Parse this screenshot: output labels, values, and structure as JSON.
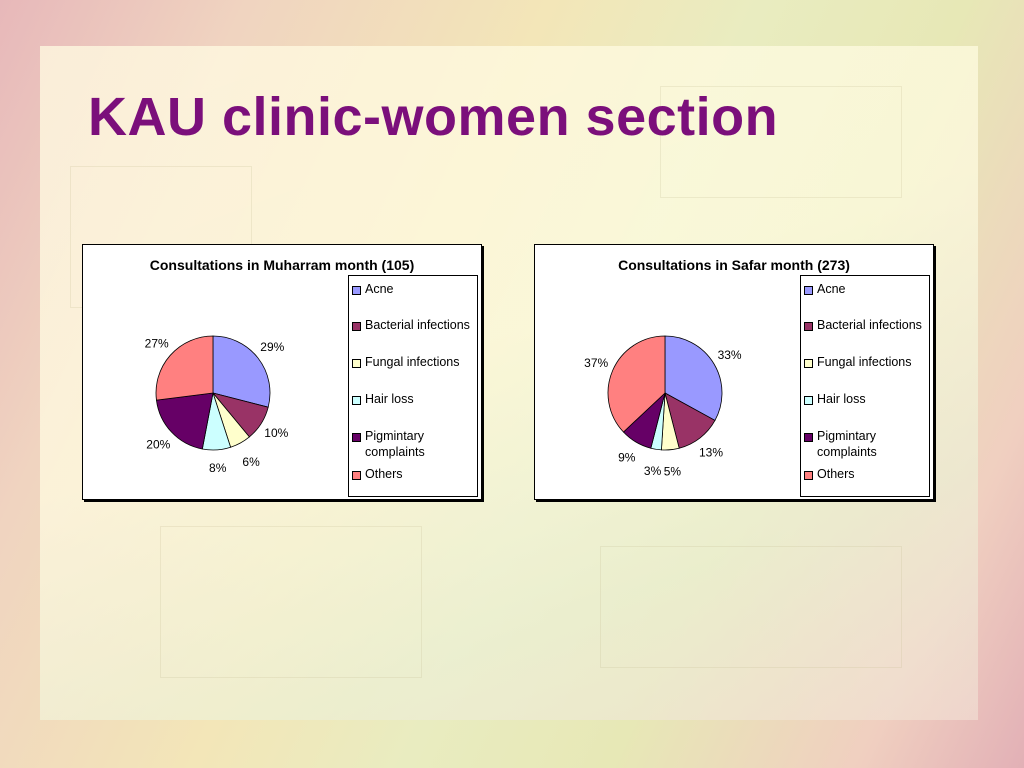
{
  "slide": {
    "title": "KAU clinic-women section"
  },
  "legend_items": [
    {
      "label": "Acne",
      "color": "#9999ff"
    },
    {
      "label": "Bacterial infections",
      "color": "#993366"
    },
    {
      "label": "Fungal infections",
      "color": "#ffffcc"
    },
    {
      "label": "Hair loss",
      "color": "#ccffff"
    },
    {
      "label": "Pigmintary complaints",
      "color": "#660066"
    },
    {
      "label": "Others",
      "color": "#ff8080"
    }
  ],
  "chart_data": [
    {
      "type": "pie",
      "title": "Consultations in Muharram month (105)",
      "categories": [
        "Acne",
        "Bacterial infections",
        "Fungal infections",
        "Hair loss",
        "Pigmintary complaints",
        "Others"
      ],
      "values": [
        29,
        10,
        6,
        8,
        20,
        27
      ],
      "labels": [
        "29%",
        "10%",
        "6%",
        "8%",
        "20%",
        "27%"
      ],
      "legend": "right"
    },
    {
      "type": "pie",
      "title": "Consultations in Safar month (273)",
      "categories": [
        "Acne",
        "Bacterial infections",
        "Fungal infections",
        "Hair loss",
        "Pigmintary complaints",
        "Others"
      ],
      "values": [
        33,
        13,
        5,
        3,
        9,
        37
      ],
      "labels": [
        "33%",
        "13%",
        "5%",
        "3%",
        "9%",
        "37%"
      ],
      "legend": "right"
    }
  ]
}
